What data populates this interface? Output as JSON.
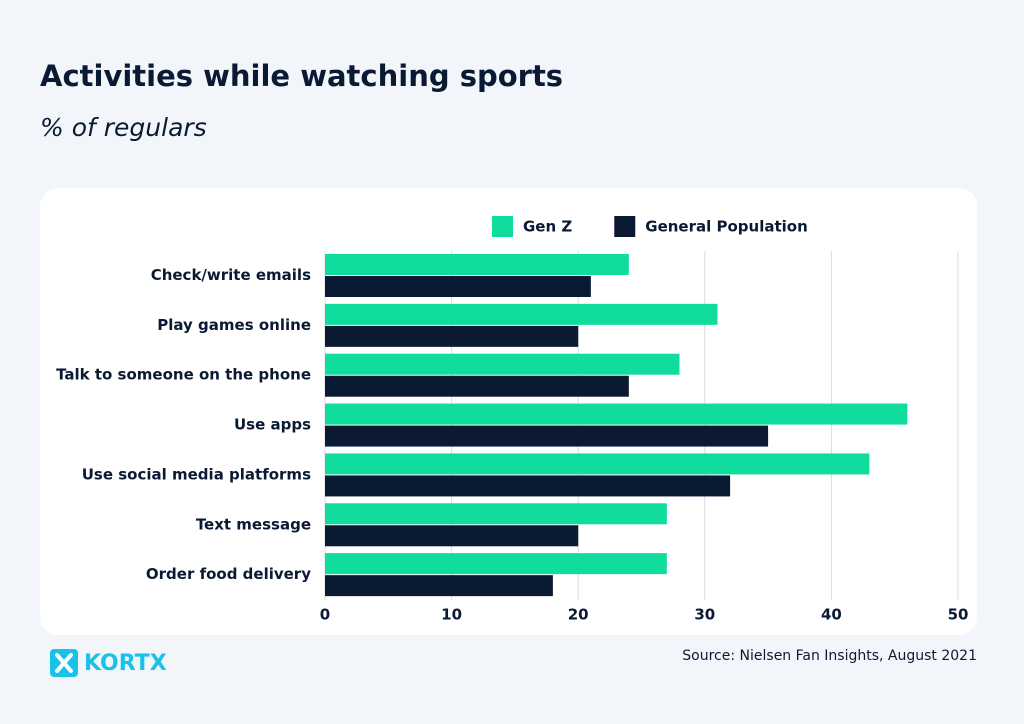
{
  "chart_data": {
    "type": "barh",
    "title": "Activities while watching sports",
    "subtitle": "% of regulars",
    "source": "Source: Nielsen Fan Insights, August 2021",
    "brand": "KORTX",
    "categories": [
      "Check/write emails",
      "Play games online",
      "Talk to someone on the phone",
      "Use apps",
      "Use social media platforms",
      "Text message",
      "Order food delivery"
    ],
    "series": [
      {
        "name": "Gen Z",
        "color": "#10dc9d",
        "values": [
          24,
          31,
          28,
          46,
          43,
          27,
          27
        ]
      },
      {
        "name": "General Population",
        "color": "#0b1a33",
        "values": [
          21,
          20,
          24,
          35,
          32,
          20,
          18
        ]
      }
    ],
    "xlim": [
      0,
      50
    ],
    "xticks": [
      0,
      10,
      20,
      30,
      40,
      50
    ],
    "grid": true,
    "legend": "top"
  }
}
